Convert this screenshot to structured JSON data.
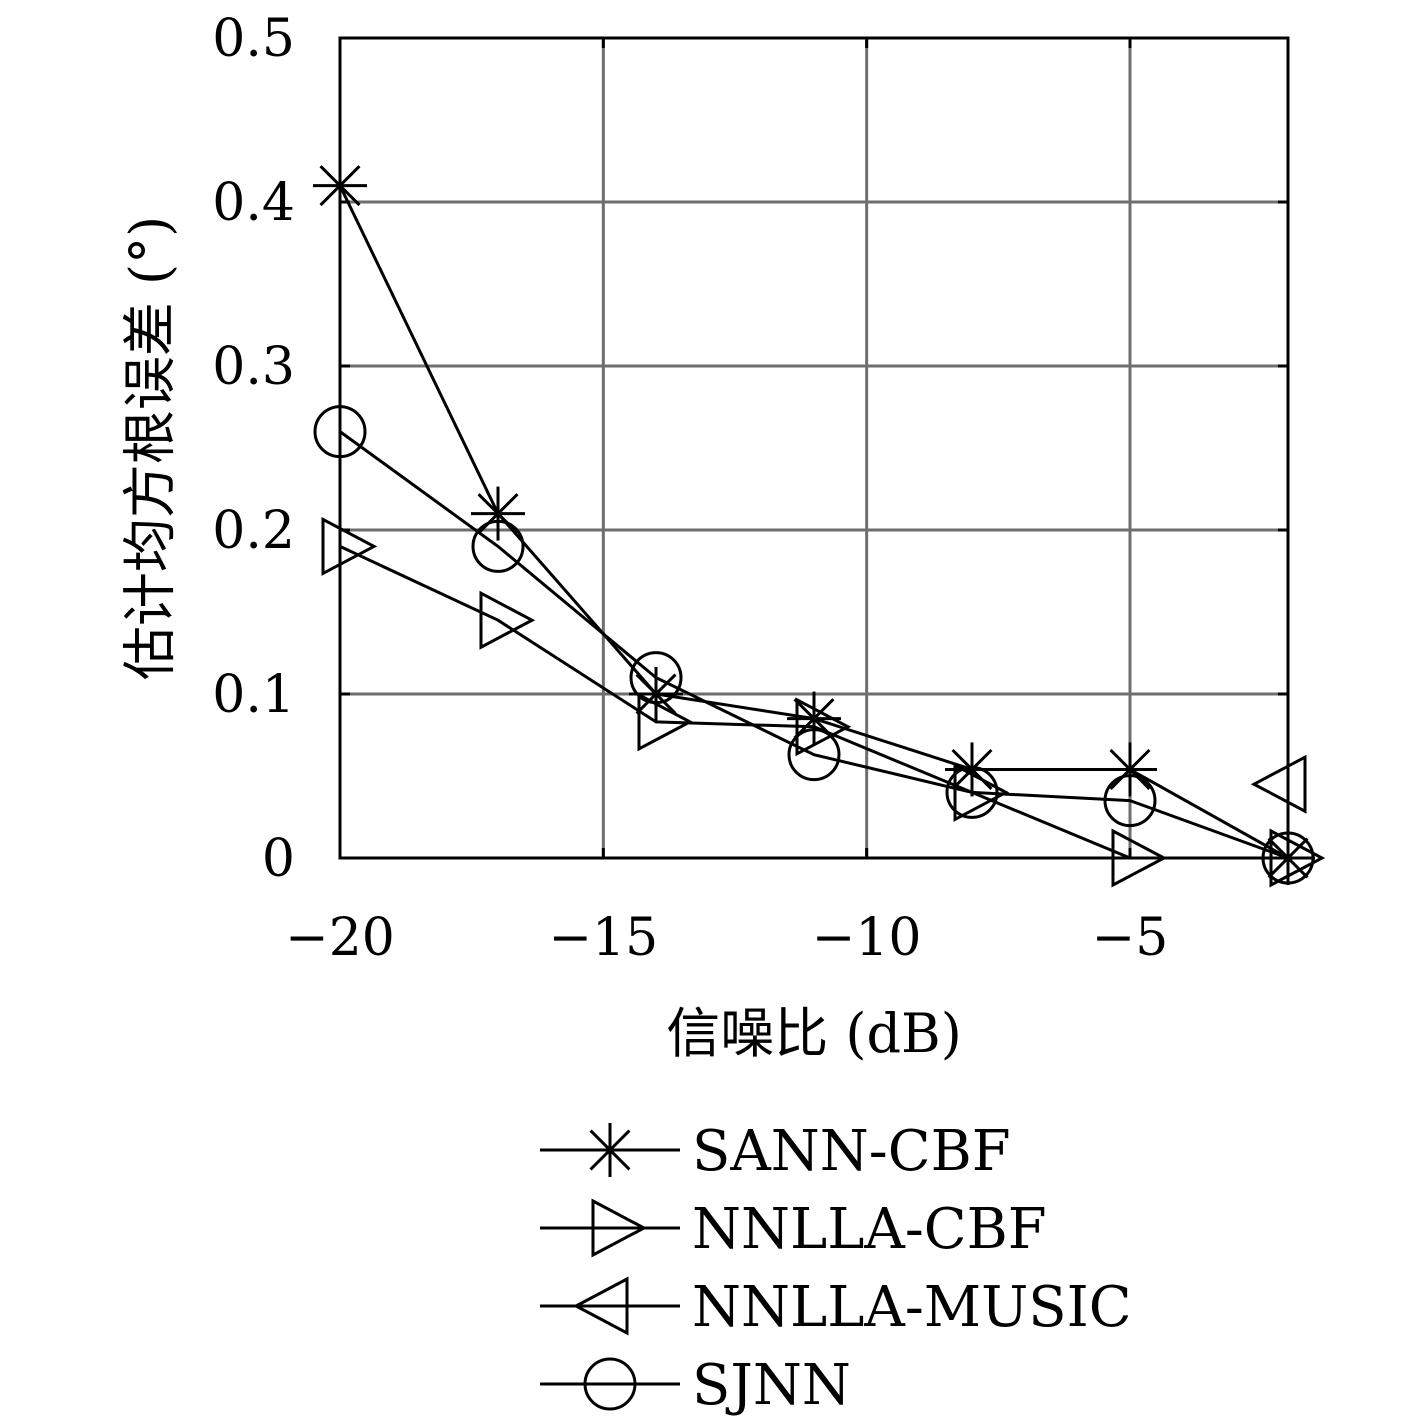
{
  "chart_data": {
    "type": "line",
    "title": "",
    "xlabel": "信噪比 (dB)",
    "ylabel": "估计均方根误差 (°)",
    "xlim": [
      -20,
      -2
    ],
    "ylim": [
      0,
      0.5
    ],
    "x_ticks": [
      -20,
      -15,
      -10,
      -5
    ],
    "x_tick_labels": [
      "−20",
      "−15",
      "−10",
      "−5"
    ],
    "y_ticks": [
      0,
      0.1,
      0.2,
      0.3,
      0.4,
      0.5
    ],
    "y_tick_labels": [
      "0",
      "0.1",
      "0.2",
      "0.3",
      "0.4",
      "0.5"
    ],
    "grid": true,
    "legend_position": "below",
    "x": [
      -20,
      -17,
      -14,
      -11,
      -8,
      -5,
      -2
    ],
    "series": [
      {
        "name": "SANN-CBF",
        "marker": "star",
        "values": [
          0.41,
          0.21,
          0.1,
          0.085,
          0.054,
          0.054,
          0.0
        ]
      },
      {
        "name": "NNLLA-CBF",
        "marker": "triangle-right",
        "values": [
          0.19,
          0.145,
          0.083,
          0.08,
          0.04,
          0.0,
          0.0
        ]
      },
      {
        "name": "NNLLA-MUSIC",
        "marker": "triangle-left",
        "values": [
          null,
          null,
          null,
          null,
          null,
          null,
          0.045
        ]
      },
      {
        "name": "SJNN",
        "marker": "circle",
        "values": [
          0.26,
          0.19,
          0.11,
          0.063,
          0.04,
          0.035,
          0.0
        ]
      }
    ]
  }
}
